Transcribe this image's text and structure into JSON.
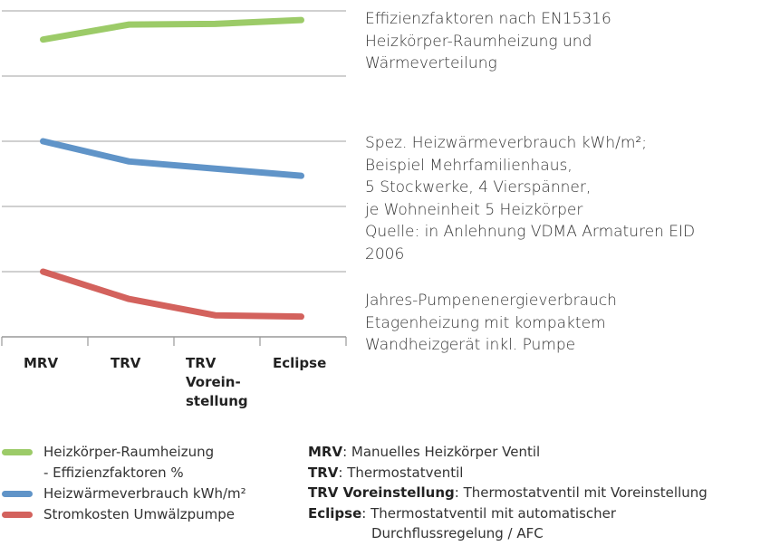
{
  "chart_data": {
    "type": "line",
    "categories": [
      "MRV",
      "TRV",
      "TRV Vorein-stellung",
      "Eclipse"
    ],
    "category_label_lines": [
      [
        "MRV"
      ],
      [
        "TRV"
      ],
      [
        "TRV",
        "Vorein-",
        "stellung"
      ],
      [
        "Eclipse"
      ]
    ],
    "ylim": [
      0,
      5
    ],
    "grid": true,
    "y_axis_labels": false,
    "legend_placement": "bottom-left",
    "series": [
      {
        "name": "Heizkörper-Raumheizung - Effizienzfaktoren %",
        "color": "#9ccb68",
        "values": [
          4.56,
          4.79,
          4.8,
          4.86
        ]
      },
      {
        "name": "Heizwärmeverbrauch kWh/m²",
        "color": "#6094c8",
        "values": [
          3.0,
          2.69,
          2.58,
          2.47
        ]
      },
      {
        "name": "Stromkosten Umwälzpumpe",
        "color": "#d3625d",
        "values": [
          1.0,
          0.58,
          0.33,
          0.31
        ]
      }
    ],
    "annotations": [
      [
        "Effizienzfaktoren nach EN15316",
        "Heizkörper-Raumheizung und",
        "Wärmeverteilung"
      ],
      [
        "Spez. Heizwärmeverbrauch kWh/m²;",
        "Beispiel Mehrfamilienhaus,",
        "5 Stockwerke, 4 Vierspänner,",
        "je Wohneinheit 5 Heizkörper",
        "Quelle: in Anlehnung VDMA Armaturen EID",
        "2006"
      ],
      [
        "Jahres-Pumpenenergieverbrauch",
        "Etagenheizung mit kompaktem",
        "Wandheizgerät inkl. Pumpe"
      ]
    ],
    "legend": [
      {
        "lines": [
          "Heizkörper-Raumheizung",
          "- Effizienzfaktoren %"
        ],
        "color": "#9ccb68"
      },
      {
        "lines": [
          "Heizwärmeverbrauch kWh/m²"
        ],
        "color": "#6094c8"
      },
      {
        "lines": [
          "Stromkosten Umwälzpumpe"
        ],
        "color": "#d3625d"
      }
    ],
    "definitions": [
      {
        "term": "MRV",
        "text": ": Manuelles Heizkörper Ventil"
      },
      {
        "term": "TRV",
        "text": ": Thermostatventil"
      },
      {
        "term": "TRV Voreinstellung",
        "text": ": Thermostatventil mit Voreinstellung"
      },
      {
        "term": "Eclipse",
        "text": ":  Thermostatventil mit automatischer",
        "cont": "Durchflussregelung / AFC"
      }
    ]
  },
  "colors": {
    "grid": "#b5b5b5",
    "axis": "#999999"
  }
}
